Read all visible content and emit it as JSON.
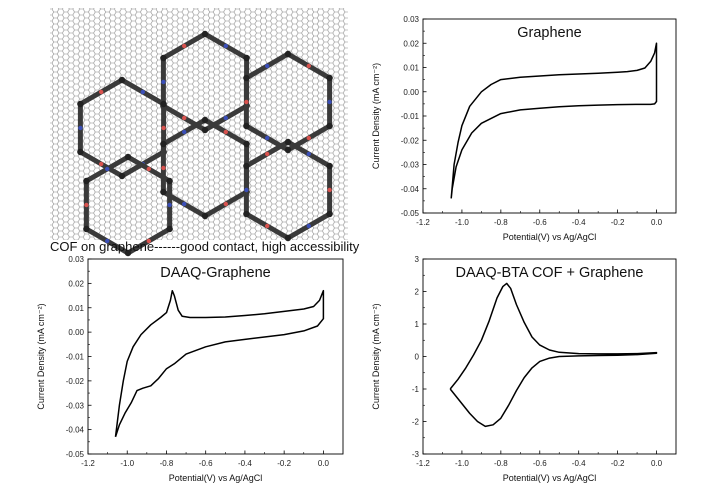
{
  "illustration": {
    "caption": "COF on graphene------good contact, high accessibility"
  },
  "chart_data": [
    {
      "type": "line",
      "title": "Graphene",
      "xlabel": "Potential(V) vs Ag/AgCl",
      "ylabel": "Current Density (mA cm⁻²)",
      "xlim": [
        -1.2,
        0.1
      ],
      "ylim": [
        -0.05,
        0.03
      ],
      "xticks": [
        "-1.2",
        "-1.0",
        "-0.8",
        "-0.6",
        "-0.4",
        "-0.2",
        "0.0"
      ],
      "yticks": [
        "-0.05",
        "-0.04",
        "-0.03",
        "-0.02",
        "-0.01",
        "0.00",
        "0.01",
        "0.02",
        "0.03"
      ],
      "series": [
        {
          "x": [
            -1.055,
            -1.04,
            -1.02,
            -1.0,
            -0.96,
            -0.9,
            -0.85,
            -0.8,
            -0.7,
            -0.6,
            -0.5,
            -0.4,
            -0.3,
            -0.2,
            -0.15,
            -0.1,
            -0.06,
            -0.03,
            -0.01,
            0.0,
            0.0,
            -0.01,
            -0.03,
            -0.1,
            -0.2,
            -0.3,
            -0.4,
            -0.5,
            -0.6,
            -0.7,
            -0.8,
            -0.9,
            -0.95,
            -1.0,
            -1.03,
            -1.05,
            -1.055
          ],
          "y": [
            -0.044,
            -0.03,
            -0.021,
            -0.014,
            -0.006,
            0.0,
            0.003,
            0.005,
            0.006,
            0.0065,
            0.007,
            0.0073,
            0.0076,
            0.008,
            0.0083,
            0.0088,
            0.0098,
            0.0125,
            0.016,
            0.02,
            -0.004,
            -0.005,
            -0.0052,
            -0.0052,
            -0.0053,
            -0.0055,
            -0.0058,
            -0.0062,
            -0.0068,
            -0.0075,
            -0.009,
            -0.013,
            -0.017,
            -0.024,
            -0.031,
            -0.04,
            -0.044
          ]
        }
      ]
    },
    {
      "type": "line",
      "title": "DAAQ-Graphene",
      "xlabel": "Potential(V) vs Ag/AgCl",
      "ylabel": "Current Density (mA cm⁻²)",
      "xlim": [
        -1.2,
        0.1
      ],
      "ylim": [
        -0.05,
        0.03
      ],
      "xticks": [
        "-1.2",
        "-1.0",
        "-0.8",
        "-0.6",
        "-0.4",
        "-0.2",
        "0.0"
      ],
      "yticks": [
        "-0.05",
        "-0.04",
        "-0.03",
        "-0.02",
        "-0.01",
        "0.00",
        "0.01",
        "0.02",
        "0.03"
      ],
      "series": [
        {
          "x": [
            -1.06,
            -1.04,
            -1.02,
            -1.0,
            -0.97,
            -0.93,
            -0.88,
            -0.83,
            -0.8,
            -0.78,
            -0.77,
            -0.76,
            -0.74,
            -0.72,
            -0.68,
            -0.6,
            -0.5,
            -0.4,
            -0.3,
            -0.2,
            -0.1,
            -0.05,
            -0.02,
            0.0,
            0.0,
            -0.03,
            -0.1,
            -0.2,
            -0.3,
            -0.4,
            -0.5,
            -0.6,
            -0.7,
            -0.76,
            -0.8,
            -0.84,
            -0.88,
            -0.92,
            -0.95,
            -0.98,
            -1.01,
            -1.04,
            -1.06
          ],
          "y": [
            -0.043,
            -0.03,
            -0.02,
            -0.012,
            -0.006,
            -0.001,
            0.003,
            0.006,
            0.008,
            0.013,
            0.017,
            0.015,
            0.009,
            0.0065,
            0.006,
            0.006,
            0.0062,
            0.0068,
            0.0075,
            0.0085,
            0.0095,
            0.0105,
            0.013,
            0.017,
            0.0055,
            0.0025,
            0.0005,
            -0.001,
            -0.002,
            -0.003,
            -0.004,
            -0.006,
            -0.009,
            -0.013,
            -0.015,
            -0.019,
            -0.022,
            -0.023,
            -0.024,
            -0.029,
            -0.033,
            -0.038,
            -0.043
          ]
        }
      ]
    },
    {
      "type": "line",
      "title": "DAAQ-BTA COF + Graphene",
      "xlabel": "Potential(V) vs Ag/AgCl",
      "ylabel": "Current Density (mA cm⁻²)",
      "xlim": [
        -1.2,
        0.1
      ],
      "ylim": [
        -3,
        3
      ],
      "xticks": [
        "-1.2",
        "-1.0",
        "-0.8",
        "-0.6",
        "-0.4",
        "-0.2",
        "0.0"
      ],
      "yticks": [
        "-3",
        "-2",
        "-1",
        "0",
        "1",
        "2",
        "3"
      ],
      "series": [
        {
          "x": [
            -1.06,
            -1.02,
            -0.98,
            -0.94,
            -0.9,
            -0.86,
            -0.82,
            -0.79,
            -0.77,
            -0.75,
            -0.72,
            -0.68,
            -0.64,
            -0.6,
            -0.55,
            -0.5,
            -0.4,
            -0.3,
            -0.2,
            -0.1,
            0.0,
            0.0,
            -0.1,
            -0.2,
            -0.3,
            -0.4,
            -0.5,
            -0.55,
            -0.6,
            -0.64,
            -0.68,
            -0.72,
            -0.76,
            -0.8,
            -0.84,
            -0.88,
            -0.92,
            -0.96,
            -1.0,
            -1.04,
            -1.06
          ],
          "y": [
            -1.0,
            -0.7,
            -0.35,
            0.05,
            0.5,
            1.1,
            1.8,
            2.15,
            2.25,
            2.1,
            1.6,
            1.05,
            0.6,
            0.35,
            0.2,
            0.13,
            0.09,
            0.08,
            0.08,
            0.09,
            0.12,
            0.1,
            0.06,
            0.04,
            0.03,
            0.02,
            0.0,
            -0.05,
            -0.15,
            -0.35,
            -0.65,
            -1.05,
            -1.5,
            -1.9,
            -2.1,
            -2.15,
            -2.0,
            -1.75,
            -1.45,
            -1.15,
            -1.0
          ]
        }
      ]
    }
  ]
}
